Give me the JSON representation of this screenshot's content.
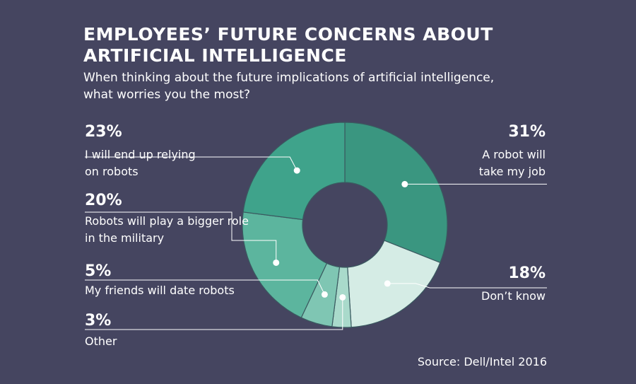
{
  "header": {
    "title_line1": "EMPLOYEES’ FUTURE CONCERNS ABOUT",
    "title_line2": "ARTIFICIAL INTELLIGENCE",
    "subtitle_line1": "When thinking about the future implications of artificial intelligence,",
    "subtitle_line2": "what worries you the most?"
  },
  "source": "Source: Dell/Intel 2016",
  "chart_data": {
    "type": "pie",
    "variant": "donut",
    "title": "EMPLOYEES’ FUTURE CONCERNS ABOUT ARTIFICIAL INTELLIGENCE",
    "subtitle": "When thinking about the future implications of artificial intelligence, what worries you the most?",
    "slices": [
      {
        "key": "robot-job",
        "value": 31,
        "pct_label": "31%",
        "label_lines": [
          "A robot will",
          "take my job"
        ],
        "color": "#3a9680",
        "side": "right"
      },
      {
        "key": "dont-know",
        "value": 18,
        "pct_label": "18%",
        "label_lines": [
          "Don’t know"
        ],
        "color": "#d5ece5",
        "side": "right"
      },
      {
        "key": "other",
        "value": 3,
        "pct_label": "3%",
        "label_lines": [
          "Other"
        ],
        "color": "#a9dacb",
        "side": "left"
      },
      {
        "key": "date-robots",
        "value": 5,
        "pct_label": "5%",
        "label_lines": [
          "My friends will date robots"
        ],
        "color": "#7fc6b3",
        "side": "left"
      },
      {
        "key": "military",
        "value": 20,
        "pct_label": "20%",
        "label_lines": [
          "Robots will play a bigger role",
          "in the military"
        ],
        "color": "#5cb59e",
        "side": "left"
      },
      {
        "key": "relying",
        "value": 23,
        "pct_label": "23%",
        "label_lines": [
          "I will end up relying",
          "on robots"
        ],
        "color": "#3fa38b",
        "side": "left"
      }
    ],
    "start_angle": "12 o'clock",
    "direction": "clockwise",
    "line_color": "#ffffff",
    "background": "#454560"
  }
}
